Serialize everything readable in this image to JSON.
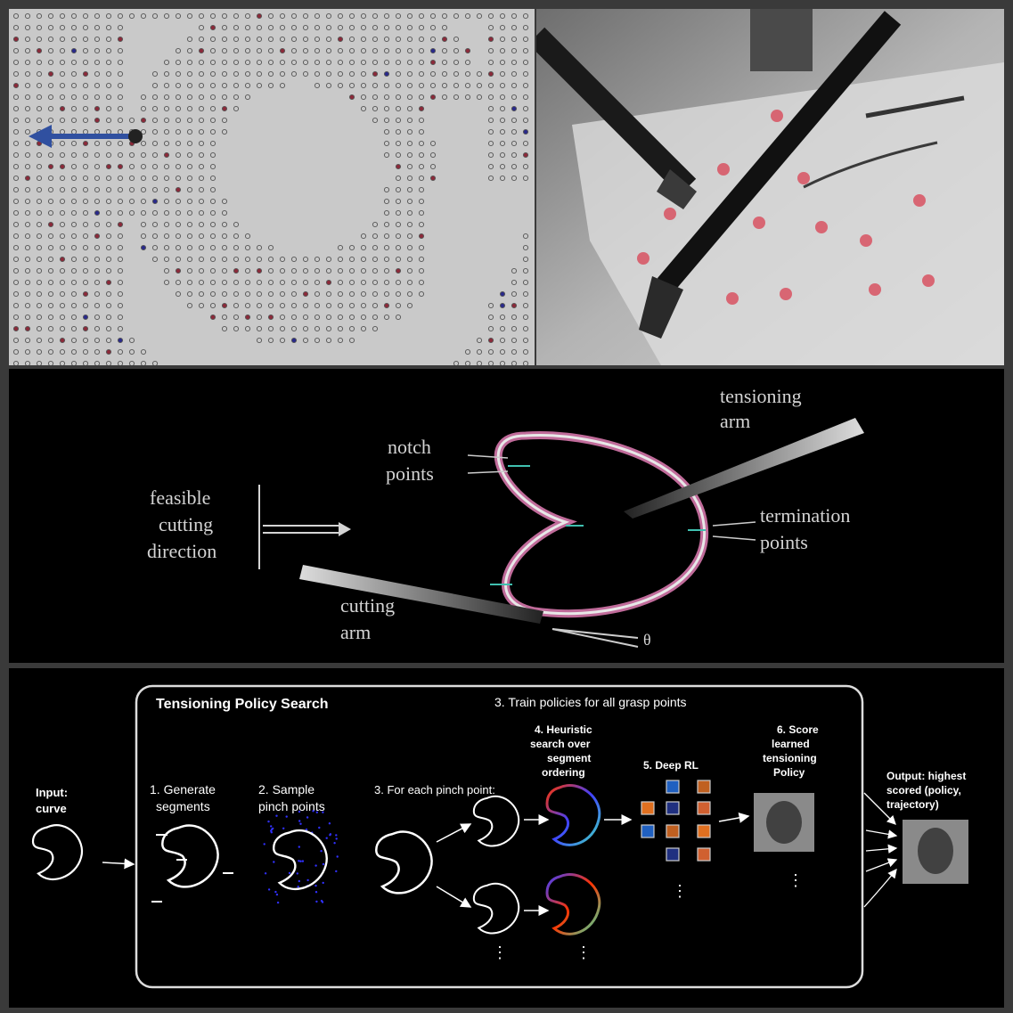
{
  "diagram": {
    "labels": {
      "feasible": [
        "feasible",
        "cutting",
        "direction"
      ],
      "notch": [
        "notch",
        "points"
      ],
      "tensioning": [
        "tensioning",
        "arm"
      ],
      "termination": [
        "termination",
        "points"
      ],
      "cutting_arm": [
        "cutting",
        "arm"
      ],
      "theta": "θ"
    }
  },
  "pipeline": {
    "box_title": "Tensioning Policy Search",
    "train_title": "3. Train policies for all grasp points",
    "input": [
      "Input:",
      "curve"
    ],
    "step1": [
      "1. Generate",
      "segments"
    ],
    "step2": [
      "2. Sample",
      "pinch points"
    ],
    "step3": "3. For each pinch point:",
    "step4": [
      "4. Heuristic",
      "search over",
      "segment",
      "ordering"
    ],
    "step5": "5. Deep RL",
    "step6": [
      "6. Score",
      "learned",
      "tensioning",
      "Policy"
    ],
    "output": [
      "Output: highest",
      "scored (policy,",
      "trajectory)"
    ],
    "ellipsis": "⋮"
  },
  "colors": {
    "sim_bg": "#c9c9c9",
    "dot_red": "#8b2a3a",
    "dot_blue": "#2a2a8a",
    "arrow_blue": "#3050a0",
    "arc_pink": "#c06b9a",
    "notch_cyan": "#40c0b0",
    "photo_bg": "#9c9c9c",
    "marker_red": "#d84a5a"
  }
}
